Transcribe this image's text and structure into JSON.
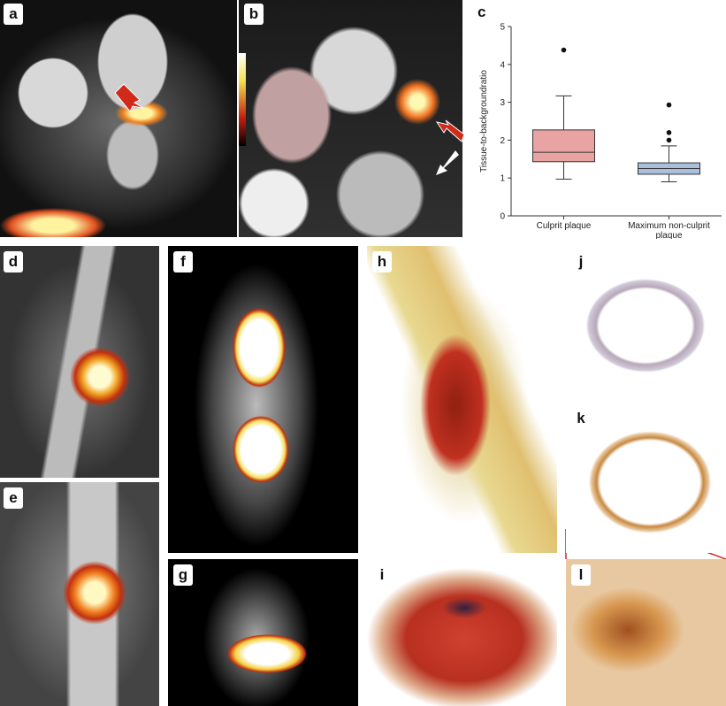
{
  "panel_labels": [
    "a",
    "b",
    "c",
    "d",
    "e",
    "f",
    "g",
    "h",
    "i",
    "j",
    "k",
    "l"
  ],
  "chart_data": {
    "type": "box",
    "ylabel": "Tissue-to-backgroundratio",
    "categories": [
      "Culprit plaque",
      "Maximum non-culprit plaque"
    ],
    "colors": [
      "#e9a3a3",
      "#a9bfdc"
    ],
    "whisker_low": [
      0.97,
      0.9
    ],
    "q1": [
      1.43,
      1.1
    ],
    "median": [
      1.68,
      1.25
    ],
    "q3": [
      2.27,
      1.4
    ],
    "whisker_high": [
      3.17,
      1.85
    ],
    "outliers": [
      [
        4.38
      ],
      [
        2.0,
        2.2,
        2.93
      ]
    ],
    "ylim": [
      0,
      5
    ],
    "yticks": [
      0,
      1,
      2,
      3,
      4,
      5
    ]
  }
}
